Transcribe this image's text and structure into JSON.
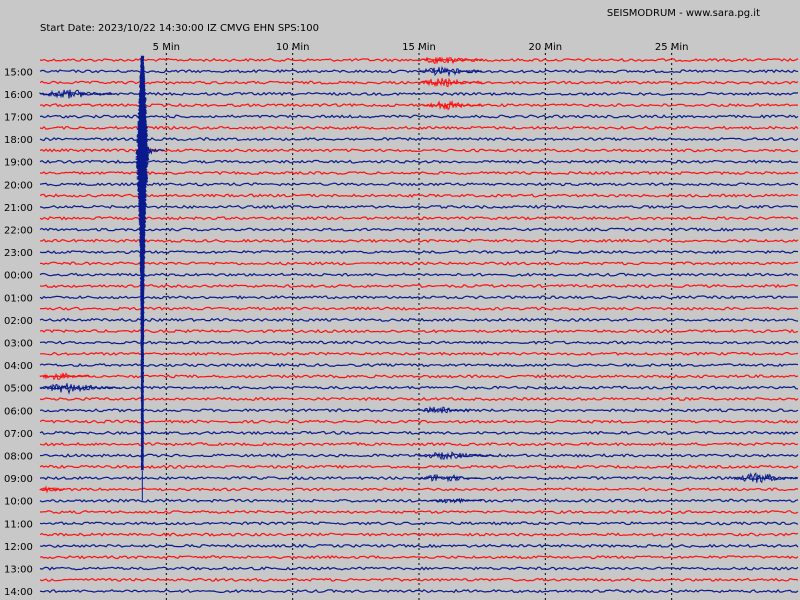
{
  "header": {
    "start_label": "Start Date: 2023/10/22 14:30:00 IZ CMVG EHN SPS:100",
    "brand": "SEISMODRUM - www.sara.pg.it"
  },
  "colors": {
    "background": "#c8c8c8",
    "trace_red": "#ff1010",
    "trace_blue": "#0a1a8c",
    "grid": "#000000"
  },
  "chart_data": {
    "type": "line",
    "title": "",
    "xlabel": "",
    "ylabel": "",
    "x_unit": "min",
    "xlim": [
      0,
      30
    ],
    "grid": true,
    "x_ticks": [
      {
        "value": 5,
        "label": "5 Min"
      },
      {
        "value": 10,
        "label": "10 Min"
      },
      {
        "value": 15,
        "label": "15 Min"
      },
      {
        "value": 20,
        "label": "20 Min"
      },
      {
        "value": 25,
        "label": "25 Min"
      }
    ],
    "hour_labels": [
      "15:00",
      "16:00",
      "17:00",
      "18:00",
      "19:00",
      "20:00",
      "21:00",
      "22:00",
      "23:00",
      "00:00",
      "01:00",
      "02:00",
      "03:00",
      "04:00",
      "05:00",
      "06:00",
      "07:00",
      "08:00",
      "09:00",
      "10:00",
      "11:00",
      "12:00",
      "13:00",
      "14:00"
    ],
    "trace_colors": [
      "red",
      "blue"
    ],
    "events": [
      {
        "trace": 0,
        "start_min": 15,
        "end_min": 17.5,
        "amplitude": 0.5
      },
      {
        "trace": 1,
        "start_min": 15,
        "end_min": 17.5,
        "amplitude": 0.5
      },
      {
        "trace": 2,
        "start_min": 15,
        "end_min": 17.5,
        "amplitude": 0.5
      },
      {
        "trace": 3,
        "start_min": 0,
        "end_min": 3,
        "amplitude": 0.5
      },
      {
        "trace": 4,
        "start_min": 15.2,
        "end_min": 17.5,
        "amplitude": 0.5
      },
      {
        "trace": 28,
        "start_min": 0,
        "end_min": 2,
        "amplitude": 0.4
      },
      {
        "trace": 29,
        "start_min": 0,
        "end_min": 3.2,
        "amplitude": 0.6
      },
      {
        "trace": 31,
        "start_min": 15,
        "end_min": 17,
        "amplitude": 0.4
      },
      {
        "trace": 35,
        "start_min": 15,
        "end_min": 18,
        "amplitude": 0.4
      },
      {
        "trace": 37,
        "start_min": 15,
        "end_min": 17.5,
        "amplitude": 0.45
      },
      {
        "trace": 37,
        "start_min": 27.5,
        "end_min": 30,
        "amplitude": 0.55
      },
      {
        "trace": 38,
        "start_min": 0,
        "end_min": 1,
        "amplitude": 0.3
      },
      {
        "trace": 39,
        "start_min": 15.5,
        "end_min": 17.5,
        "amplitude": 0.3
      }
    ],
    "big_event": {
      "time_min": 4.05,
      "start_trace": 0,
      "peak_trace": 8,
      "end_trace": 36
    }
  }
}
